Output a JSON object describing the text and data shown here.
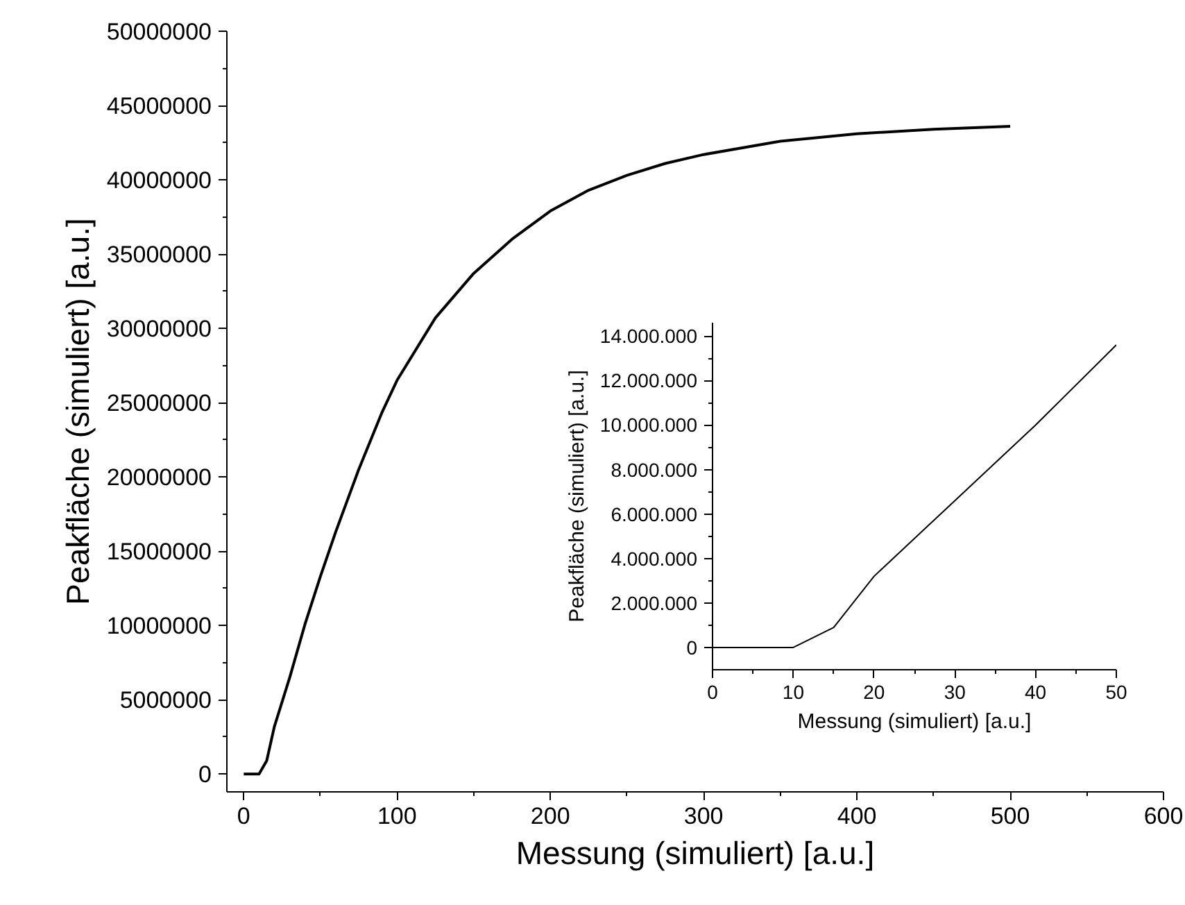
{
  "chart_data": [
    {
      "type": "line",
      "xlabel": "Messung (simuliert) [a.u.]",
      "ylabel": "Peakfläche (simuliert) [a.u.]",
      "xlim": [
        -11,
        600
      ],
      "xticks": [
        0,
        100,
        200,
        300,
        400,
        500,
        600
      ],
      "ylim": [
        -1200000,
        50000000
      ],
      "yticks": [
        0,
        5000000,
        10000000,
        15000000,
        20000000,
        25000000,
        30000000,
        35000000,
        40000000,
        45000000,
        50000000
      ],
      "series": [
        {
          "color": "#000000",
          "x": [
            0,
            10,
            15,
            20,
            30,
            40,
            50,
            60,
            75,
            90,
            100,
            125,
            150,
            175,
            200,
            225,
            250,
            275,
            300,
            350,
            400,
            450,
            500
          ],
          "values": [
            0,
            0,
            900000,
            3200000,
            6500000,
            10100000,
            13300000,
            16300000,
            20500000,
            24300000,
            26500000,
            30700000,
            33700000,
            36000000,
            37900000,
            39300000,
            40300000,
            41100000,
            41700000,
            42600000,
            43100000,
            43400000,
            43600000
          ]
        }
      ]
    },
    {
      "type": "line",
      "xlabel": "Messung (simuliert) [a.u.]",
      "ylabel": "Peakfläche (simuliert) [a.u.]",
      "xlim": [
        0,
        50
      ],
      "xticks": [
        0,
        10,
        20,
        30,
        40,
        50
      ],
      "ylim": [
        -1000000,
        14600000
      ],
      "yticks": [
        {
          "value": 0,
          "label": "0"
        },
        {
          "value": 2000000,
          "label": "2.000.000"
        },
        {
          "value": 4000000,
          "label": "4.000.000"
        },
        {
          "value": 6000000,
          "label": "6.000.000"
        },
        {
          "value": 8000000,
          "label": "8.000.000"
        },
        {
          "value": 10000000,
          "label": "10.000.000"
        },
        {
          "value": 12000000,
          "label": "12.000.000"
        },
        {
          "value": 14000000,
          "label": "14.000.000"
        }
      ],
      "series": [
        {
          "color": "#000000",
          "x": [
            0,
            10,
            15,
            20,
            30,
            40,
            50
          ],
          "values": [
            0,
            0,
            900000,
            3200000,
            6600000,
            10000000,
            13600000
          ]
        }
      ]
    }
  ]
}
